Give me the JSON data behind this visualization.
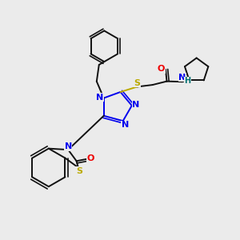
{
  "bg_color": "#ebebeb",
  "atom_colors": {
    "N": "#0000ee",
    "O": "#ee0000",
    "S": "#bbaa00",
    "C": "#111111",
    "H": "#007070"
  },
  "figsize": [
    3.0,
    3.0
  ],
  "dpi": 100
}
